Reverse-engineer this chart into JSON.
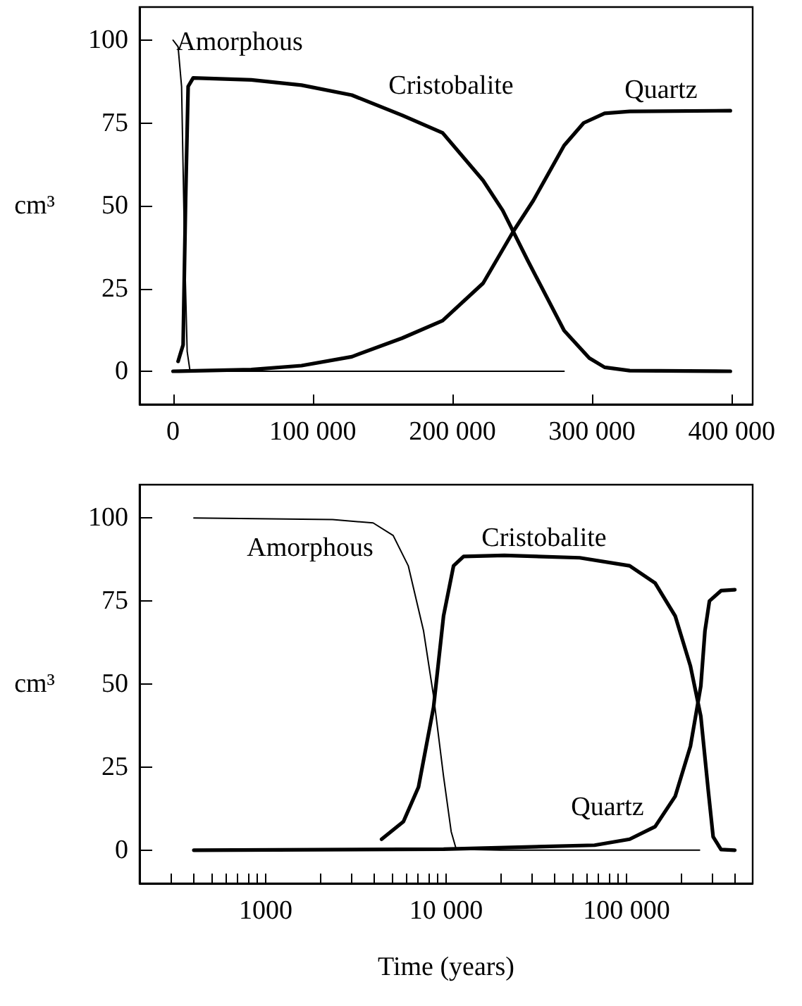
{
  "chart_data": [
    {
      "type": "line",
      "ylabel": "cm³",
      "xlim": [
        -24000,
        415000
      ],
      "ylim": [
        -10,
        110
      ],
      "xticks": [
        0,
        {
          "value": 100000,
          "label": "100 000"
        },
        {
          "value": 200000,
          "label": "200 000"
        },
        {
          "value": 300000,
          "label": "300 000"
        },
        {
          "value": 400000,
          "label": "400 000"
        }
      ],
      "yticks": [
        0,
        25,
        50,
        75,
        100
      ],
      "marker": "none",
      "line_style": "solid",
      "series": [
        {
          "color": "#000000",
          "x": [
            0,
            3600,
            6100,
            8300,
            10100,
            12000,
            20000,
            280000
          ],
          "values": [
            100,
            98,
            86,
            36,
            6,
            0.5,
            0,
            0
          ]
        },
        {
          "color": "#000000",
          "x": [
            3600,
            7200,
            9000,
            10800,
            14400,
            56000,
            92000,
            128000,
            164000,
            193000,
            222000,
            236000,
            254000,
            280000,
            298000,
            309000,
            327000,
            399000
          ],
          "values": [
            3,
            8,
            52,
            86,
            88.6,
            88,
            86.4,
            83.4,
            77.3,
            72,
            57.6,
            48.6,
            33.4,
            12.3,
            4,
            1.2,
            0.2,
            0
          ]
        },
        {
          "color": "#000000",
          "x": [
            0,
            56000,
            92000,
            128000,
            164000,
            193000,
            222000,
            244000,
            258000,
            280000,
            294000,
            309000,
            327000,
            399000
          ],
          "values": [
            0,
            0.5,
            1.7,
            4.4,
            10,
            15.3,
            26.6,
            42.5,
            51.6,
            68.2,
            75,
            77.9,
            78.5,
            78.7
          ]
        }
      ],
      "annotations": [
        "Amorphous",
        "Cristobalite",
        "Quartz"
      ]
    },
    {
      "type": "line",
      "ylabel": "cm³",
      "xlabel": "Time (years)",
      "log": "x",
      "xlim": [
        200,
        500000
      ],
      "ylim": [
        -10,
        110
      ],
      "xticks": [
        {
          "value": 300,
          "label": null
        },
        {
          "value": 400,
          "label": null
        },
        {
          "value": 500,
          "label": null
        },
        {
          "value": 600,
          "label": null
        },
        {
          "value": 700,
          "label": null
        },
        {
          "value": 800,
          "label": null
        },
        {
          "value": 900,
          "label": null
        },
        1000,
        {
          "value": 2000,
          "label": null
        },
        {
          "value": 3000,
          "label": null
        },
        {
          "value": 4000,
          "label": null
        },
        {
          "value": 5000,
          "label": null
        },
        {
          "value": 6000,
          "label": null
        },
        {
          "value": 7000,
          "label": null
        },
        {
          "value": 8000,
          "label": null
        },
        {
          "value": 9000,
          "label": null
        },
        {
          "value": 10000,
          "label": "10 000"
        },
        {
          "value": 20000,
          "label": null
        },
        {
          "value": 30000,
          "label": null
        },
        {
          "value": 40000,
          "label": null
        },
        {
          "value": 50000,
          "label": null
        },
        {
          "value": 60000,
          "label": null
        },
        {
          "value": 70000,
          "label": null
        },
        {
          "value": 80000,
          "label": null
        },
        {
          "value": 90000,
          "label": null
        },
        {
          "value": 100000,
          "label": "100 000"
        },
        {
          "value": 200000,
          "label": null
        },
        {
          "value": 300000,
          "label": null
        },
        {
          "value": 400000,
          "label": null
        }
      ],
      "yticks": [
        0,
        25,
        50,
        75,
        100
      ],
      "marker": "none",
      "line_style": "solid",
      "series": [
        {
          "color": "#000000",
          "x": [
            400,
            2350,
            3940,
            5090,
            6170,
            7500,
            8520,
            9680,
            10670,
            11380,
            20000,
            254000
          ],
          "values": [
            100,
            99.5,
            98.5,
            94.7,
            85.6,
            66,
            46.4,
            22.2,
            5.6,
            0.3,
            0,
            0
          ]
        },
        {
          "color": "#000000",
          "x": [
            4390,
            5800,
            7030,
            8520,
            9680,
            11000,
            12500,
            21000,
            55000,
            104000,
            144000,
            186000,
            226000,
            258000,
            284000,
            302000,
            334000,
            398000
          ],
          "values": [
            3.3,
            8.6,
            19,
            43,
            70.5,
            85.6,
            88.4,
            88.7,
            88,
            85.6,
            80.4,
            70.5,
            55.4,
            40.3,
            17.7,
            4,
            0.2,
            0
          ]
        },
        {
          "color": "#000000",
          "x": [
            400,
            9680,
            66500,
            104000,
            144000,
            186000,
            226000,
            258000,
            272000,
            288000,
            334000,
            398000
          ],
          "values": [
            0,
            0.3,
            1.5,
            3.3,
            7.1,
            16.2,
            31.3,
            49.4,
            66,
            75,
            78.1,
            78.4
          ]
        }
      ],
      "annotations": [
        "Amorphous",
        "Cristobalite",
        "Quartz"
      ]
    }
  ]
}
